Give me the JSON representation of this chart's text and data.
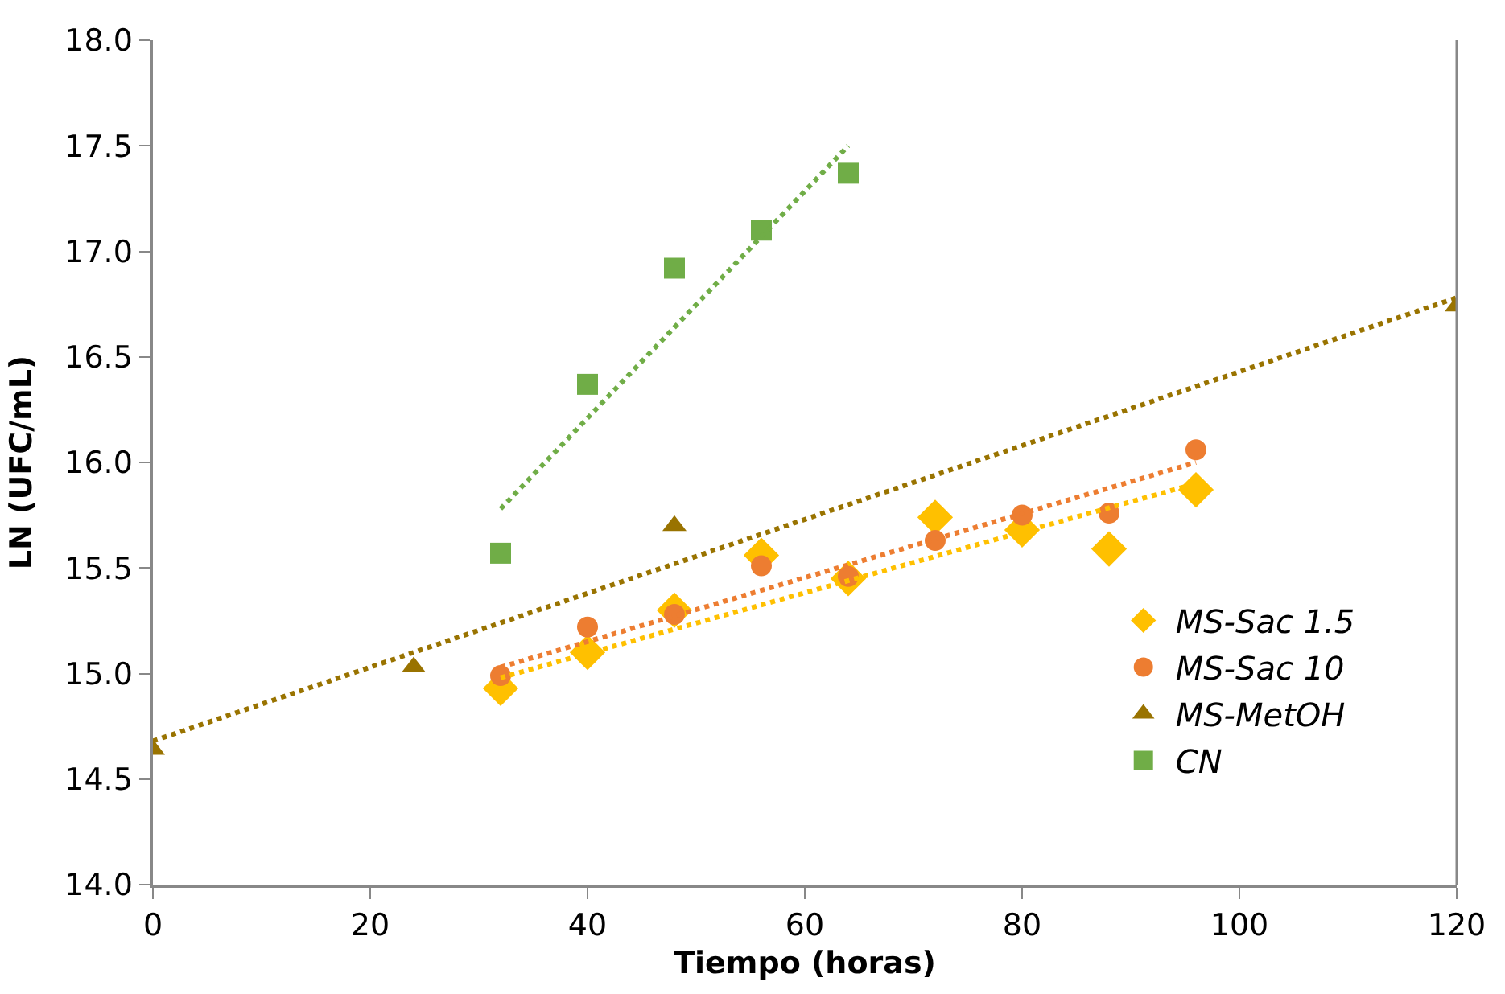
{
  "chart_data": {
    "type": "scatter",
    "xlabel": "Tiempo (horas)",
    "ylabel": "LN (UFC/mL)",
    "xlim": [
      0,
      120
    ],
    "xticks": [
      0,
      20,
      40,
      60,
      80,
      100,
      120
    ],
    "ylim": [
      14.0,
      18.0
    ],
    "yticks": [
      {
        "value": 14.0,
        "label": "14.0"
      },
      {
        "value": 14.5,
        "label": "14.5"
      },
      {
        "value": 15.0,
        "label": "15.0"
      },
      {
        "value": 15.5,
        "label": "15.5"
      },
      {
        "value": 16.0,
        "label": "16.0"
      },
      {
        "value": 16.5,
        "label": "16.5"
      },
      {
        "value": 17.0,
        "label": "17.0"
      },
      {
        "value": 17.5,
        "label": "17.5"
      },
      {
        "value": 18.0,
        "label": "18.0"
      }
    ],
    "legend": "right",
    "series": [
      {
        "name": "MS-Sac 1.5",
        "marker": "diamond",
        "color": "#ffc000",
        "x": [
          32,
          40,
          48,
          56,
          64,
          72,
          80,
          88,
          96
        ],
        "values": [
          14.93,
          15.1,
          15.3,
          15.56,
          15.45,
          15.74,
          15.68,
          15.59,
          15.87
        ]
      },
      {
        "name": "MS-Sac 10",
        "marker": "circle",
        "color": "#ed7d31",
        "x": [
          32,
          40,
          48,
          56,
          64,
          72,
          80,
          88,
          96
        ],
        "values": [
          14.99,
          15.22,
          15.28,
          15.51,
          15.46,
          15.63,
          15.75,
          15.76,
          16.06
        ]
      },
      {
        "name": "MS-MetOH",
        "marker": "triangle",
        "color": "#997300",
        "x": [
          0,
          24,
          48,
          120
        ],
        "values": [
          14.64,
          15.03,
          15.7,
          16.74
        ]
      },
      {
        "name": "CN",
        "marker": "square",
        "color": "#70ad47",
        "x": [
          32,
          40,
          48,
          56,
          64
        ],
        "values": [
          15.57,
          16.37,
          16.92,
          17.1,
          17.37
        ]
      },
      {
        "type": "line",
        "line_style": "dotted",
        "color": "#ffc000",
        "x": [
          32,
          96
        ],
        "values": [
          14.98,
          15.9
        ]
      },
      {
        "type": "line",
        "line_style": "dotted",
        "color": "#ed7d31",
        "x": [
          32,
          96
        ],
        "values": [
          15.03,
          16.0
        ]
      },
      {
        "type": "line",
        "line_style": "dotted",
        "color": "#997300",
        "x": [
          0,
          120
        ],
        "values": [
          14.68,
          16.78
        ]
      },
      {
        "type": "line",
        "line_style": "dotted",
        "color": "#70ad47",
        "x": [
          32,
          64
        ],
        "values": [
          15.78,
          17.5
        ]
      }
    ]
  }
}
